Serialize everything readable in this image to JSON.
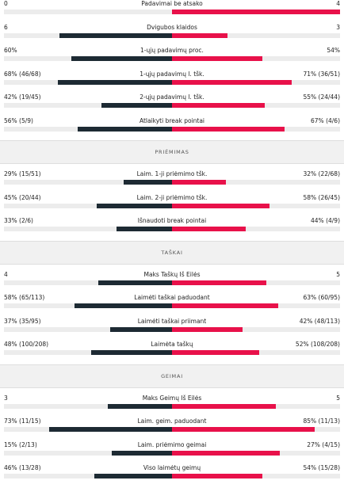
{
  "colors": {
    "dark": "#1d2a33",
    "accent": "#e8114a",
    "track": "#ececec"
  },
  "blocks": [
    {
      "rows": [
        {
          "label": "Padavimai be atsako",
          "left": "0",
          "right": "4",
          "lfrac": 0.0,
          "rfrac": 1.0
        },
        {
          "label": "Dvigubos klaidos",
          "left": "6",
          "right": "3",
          "lfrac": 0.67,
          "rfrac": 0.33
        },
        {
          "label": "1-ųjų padavimų proc.",
          "left": "60%",
          "right": "54%",
          "lfrac": 0.6,
          "rfrac": 0.54
        },
        {
          "label": "1-ųjų padavimų l. tšk.",
          "left": "68% (46/68)",
          "right": "71% (36/51)",
          "lfrac": 0.68,
          "rfrac": 0.71
        },
        {
          "label": "2-ųjų padavimų l. tšk.",
          "left": "42% (19/45)",
          "right": "55% (24/44)",
          "lfrac": 0.42,
          "rfrac": 0.55
        },
        {
          "label": "Atlaikyti break pointai",
          "left": "56% (5/9)",
          "right": "67% (4/6)",
          "lfrac": 0.56,
          "rfrac": 0.67
        }
      ]
    },
    {
      "title": "PRIĖMIMAS",
      "rows": [
        {
          "label": "Laim. 1-ji priėmimo tšk.",
          "left": "29% (15/51)",
          "right": "32% (22/68)",
          "lfrac": 0.29,
          "rfrac": 0.32
        },
        {
          "label": "Laim. 2-ji priėmimo tšk.",
          "left": "45% (20/44)",
          "right": "58% (26/45)",
          "lfrac": 0.45,
          "rfrac": 0.58
        },
        {
          "label": "Išnaudoti break pointai",
          "left": "33% (2/6)",
          "right": "44% (4/9)",
          "lfrac": 0.33,
          "rfrac": 0.44
        }
      ]
    },
    {
      "title": "TAŠKAI",
      "rows": [
        {
          "label": "Maks Taškų Iš Eilės",
          "left": "4",
          "right": "5",
          "lfrac": 0.44,
          "rfrac": 0.56
        },
        {
          "label": "Laimėti taškai paduodant",
          "left": "58% (65/113)",
          "right": "63% (60/95)",
          "lfrac": 0.58,
          "rfrac": 0.63
        },
        {
          "label": "Laimėti taškai priimant",
          "left": "37% (35/95)",
          "right": "42% (48/113)",
          "lfrac": 0.37,
          "rfrac": 0.42
        },
        {
          "label": "Laimėta taškų",
          "left": "48% (100/208)",
          "right": "52% (108/208)",
          "lfrac": 0.48,
          "rfrac": 0.52
        }
      ]
    },
    {
      "title": "GEIMAI",
      "rows": [
        {
          "label": "Maks Geimų Iš Eilės",
          "left": "3",
          "right": "5",
          "lfrac": 0.38,
          "rfrac": 0.62
        },
        {
          "label": "Laim. geim. paduodant",
          "left": "73% (11/15)",
          "right": "85% (11/13)",
          "lfrac": 0.73,
          "rfrac": 0.85
        },
        {
          "label": "Laim. priėmimo geimai",
          "left": "15% (2/13)",
          "right": "27% (4/15)",
          "lfrac": 0.36,
          "rfrac": 0.64
        },
        {
          "label": "Viso laimėtų geimų",
          "left": "46% (13/28)",
          "right": "54% (15/28)",
          "lfrac": 0.46,
          "rfrac": 0.54
        }
      ]
    }
  ]
}
